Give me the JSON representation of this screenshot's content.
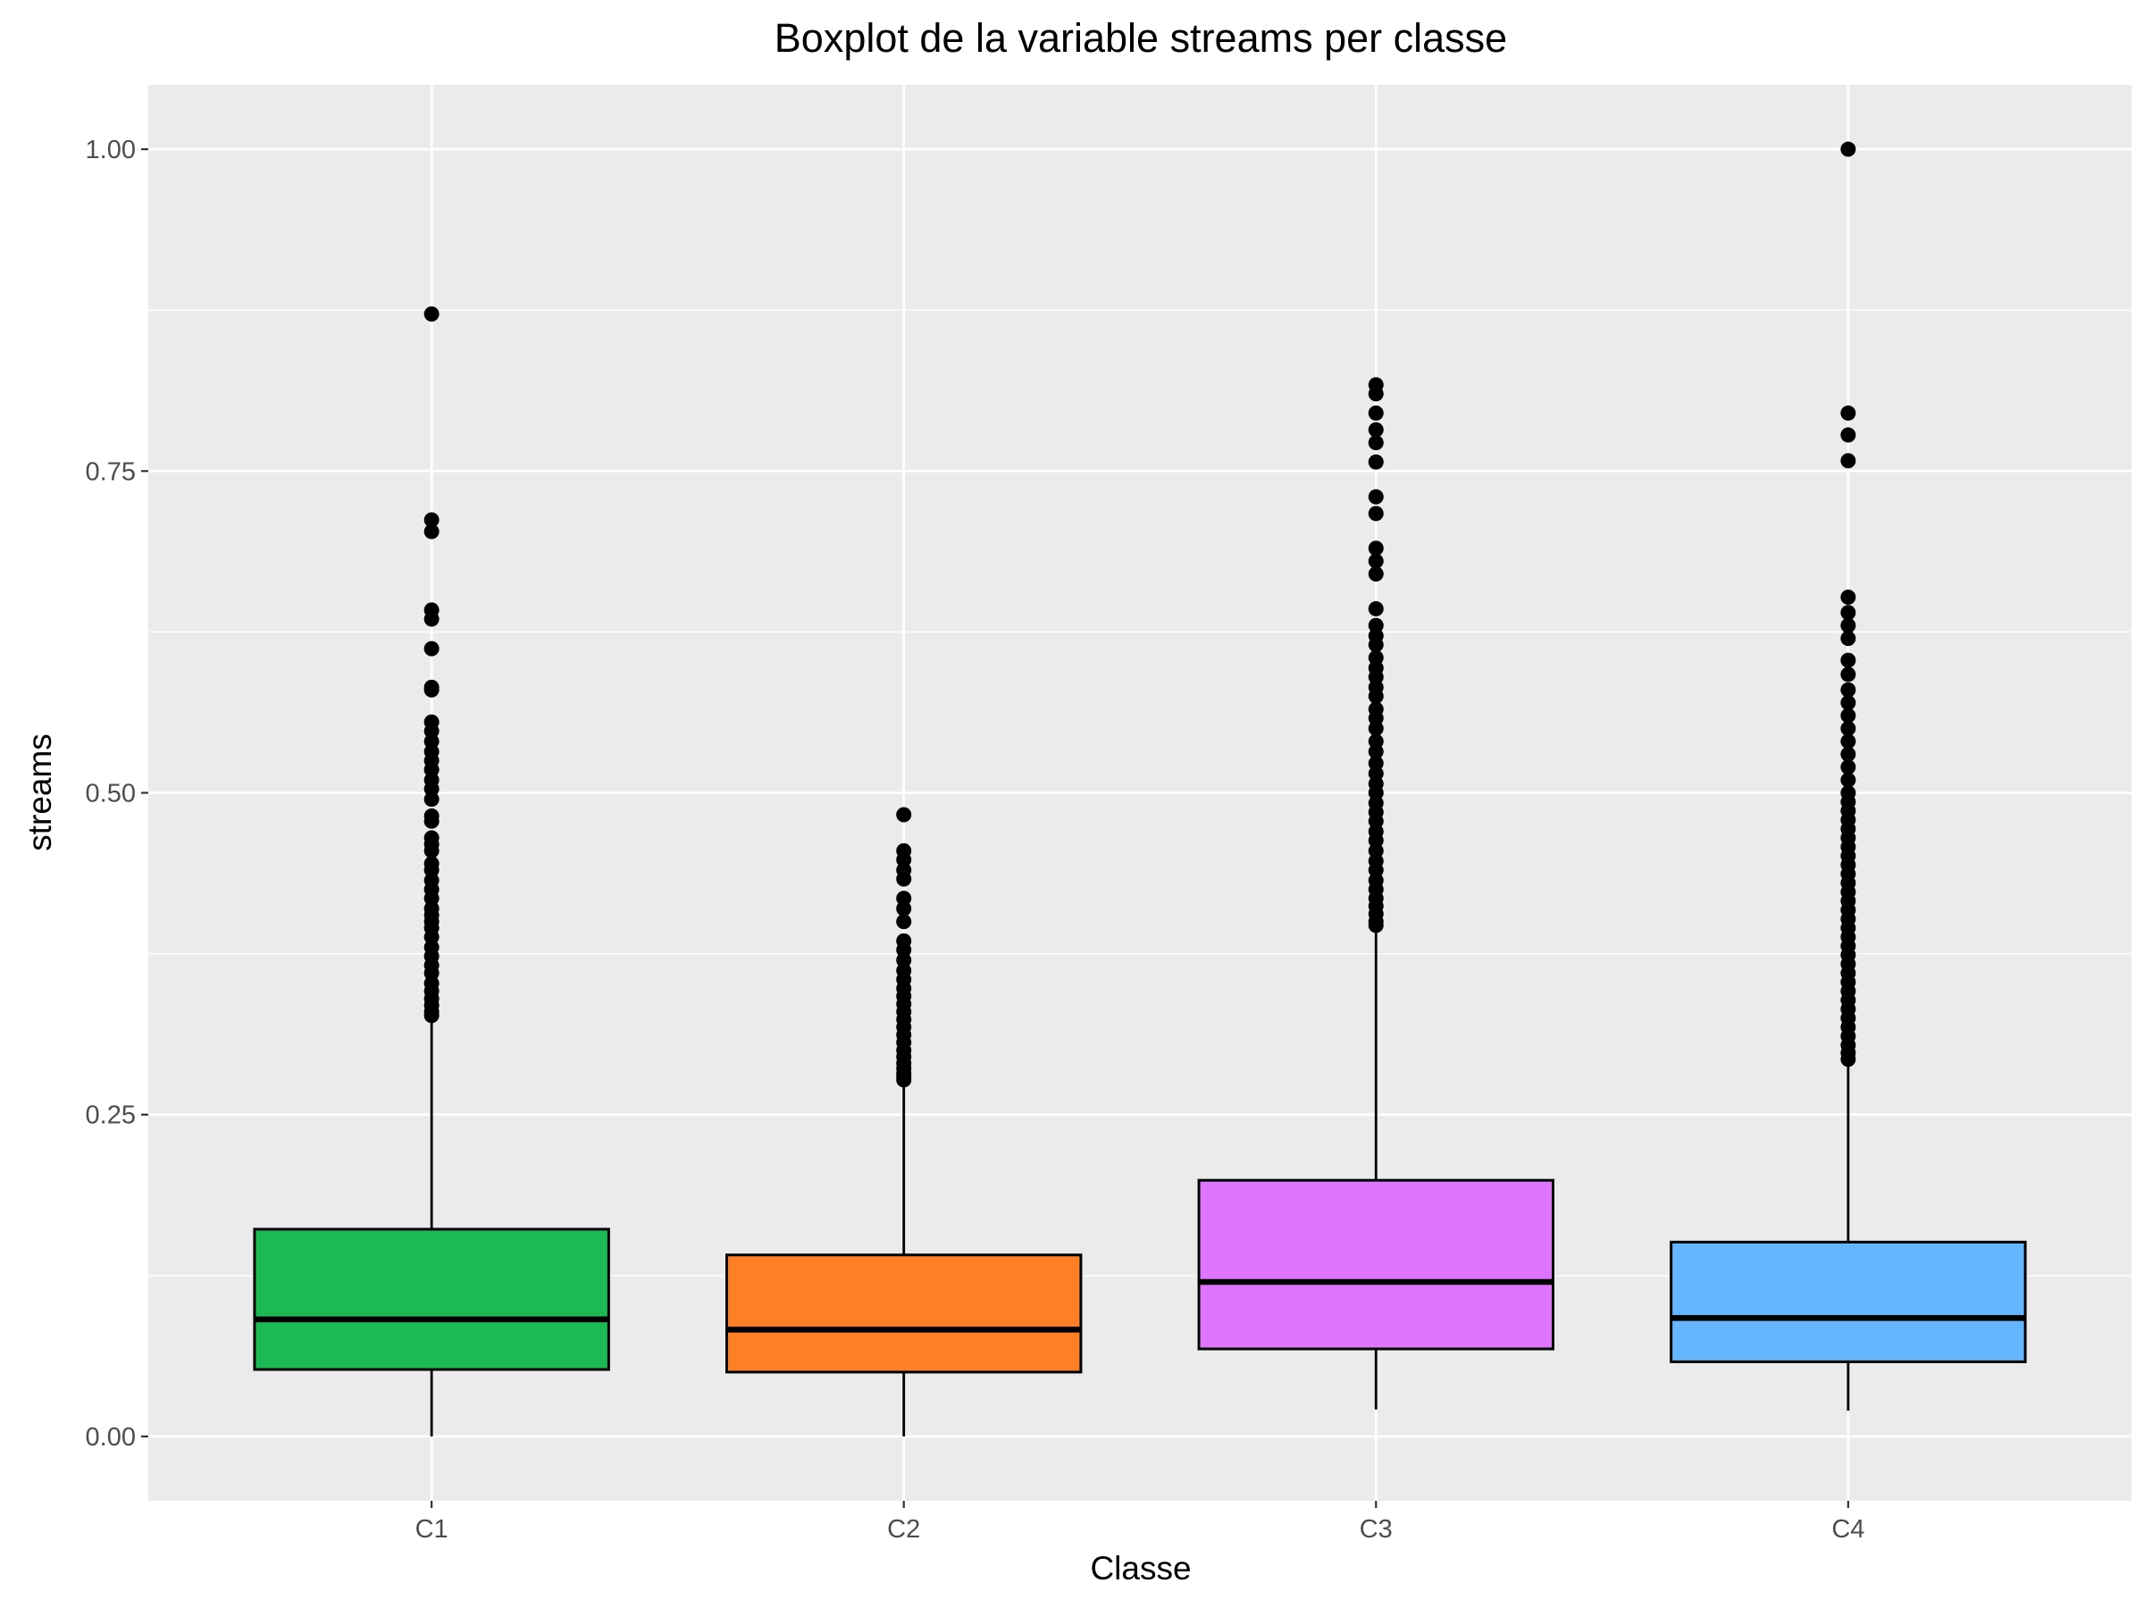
{
  "chart_data": {
    "type": "boxplot",
    "title": "Boxplot de la variable streams per classe",
    "xlabel": "Classe",
    "ylabel": "streams",
    "ylim": [
      -0.05,
      1.05
    ],
    "yticks": [
      0,
      0.25,
      0.5,
      0.75,
      1.0
    ],
    "ytick_labels": [
      "0.00",
      "0.25",
      "0.50",
      "0.75",
      "1.00"
    ],
    "grid": true,
    "legend": "none",
    "categories": [
      "C1",
      "C2",
      "C3",
      "C4"
    ],
    "series": [
      {
        "category": "C1",
        "color": "#1db954",
        "whisker_low": 0.0,
        "q1": 0.052,
        "median": 0.091,
        "q3": 0.161,
        "whisker_high": 0.325,
        "outliers": [
          0.872,
          0.712,
          0.703,
          0.642,
          0.635,
          0.612,
          0.582,
          0.58,
          0.555,
          0.548,
          0.54,
          0.532,
          0.525,
          0.518,
          0.51,
          0.503,
          0.495,
          0.482,
          0.478,
          0.465,
          0.46,
          0.455,
          0.445,
          0.44,
          0.432,
          0.425,
          0.418,
          0.41,
          0.405,
          0.4,
          0.395,
          0.388,
          0.38,
          0.373,
          0.366,
          0.36,
          0.352,
          0.346,
          0.34,
          0.335,
          0.33,
          0.327
        ]
      },
      {
        "category": "C2",
        "color": "#ff7f27",
        "whisker_low": 0.0,
        "q1": 0.05,
        "median": 0.083,
        "q3": 0.141,
        "whisker_high": 0.275,
        "outliers": [
          0.483,
          0.455,
          0.448,
          0.44,
          0.433,
          0.418,
          0.41,
          0.4,
          0.385,
          0.378,
          0.37,
          0.362,
          0.355,
          0.348,
          0.342,
          0.336,
          0.33,
          0.324,
          0.318,
          0.312,
          0.306,
          0.3,
          0.295,
          0.29,
          0.286,
          0.282,
          0.279,
          0.277
        ]
      },
      {
        "category": "C3",
        "color": "#df74ff",
        "whisker_low": 0.021,
        "q1": 0.068,
        "median": 0.12,
        "q3": 0.199,
        "whisker_high": 0.395,
        "outliers": [
          0.817,
          0.81,
          0.795,
          0.782,
          0.772,
          0.757,
          0.73,
          0.717,
          0.69,
          0.68,
          0.67,
          0.643,
          0.63,
          0.622,
          0.615,
          0.605,
          0.597,
          0.59,
          0.582,
          0.575,
          0.565,
          0.558,
          0.55,
          0.54,
          0.532,
          0.523,
          0.515,
          0.507,
          0.5,
          0.492,
          0.485,
          0.478,
          0.47,
          0.463,
          0.455,
          0.447,
          0.44,
          0.432,
          0.425,
          0.418,
          0.412,
          0.406,
          0.4,
          0.397
        ]
      },
      {
        "category": "C4",
        "color": "#66b5ff",
        "whisker_low": 0.02,
        "q1": 0.058,
        "median": 0.092,
        "q3": 0.151,
        "whisker_high": 0.29,
        "outliers": [
          1.0,
          0.795,
          0.778,
          0.758,
          0.652,
          0.64,
          0.63,
          0.62,
          0.603,
          0.592,
          0.58,
          0.57,
          0.56,
          0.55,
          0.54,
          0.53,
          0.52,
          0.51,
          0.5,
          0.493,
          0.486,
          0.479,
          0.472,
          0.465,
          0.458,
          0.451,
          0.444,
          0.437,
          0.43,
          0.423,
          0.416,
          0.409,
          0.402,
          0.395,
          0.388,
          0.381,
          0.374,
          0.367,
          0.36,
          0.353,
          0.346,
          0.339,
          0.332,
          0.325,
          0.318,
          0.311,
          0.304,
          0.298,
          0.293
        ]
      }
    ]
  }
}
